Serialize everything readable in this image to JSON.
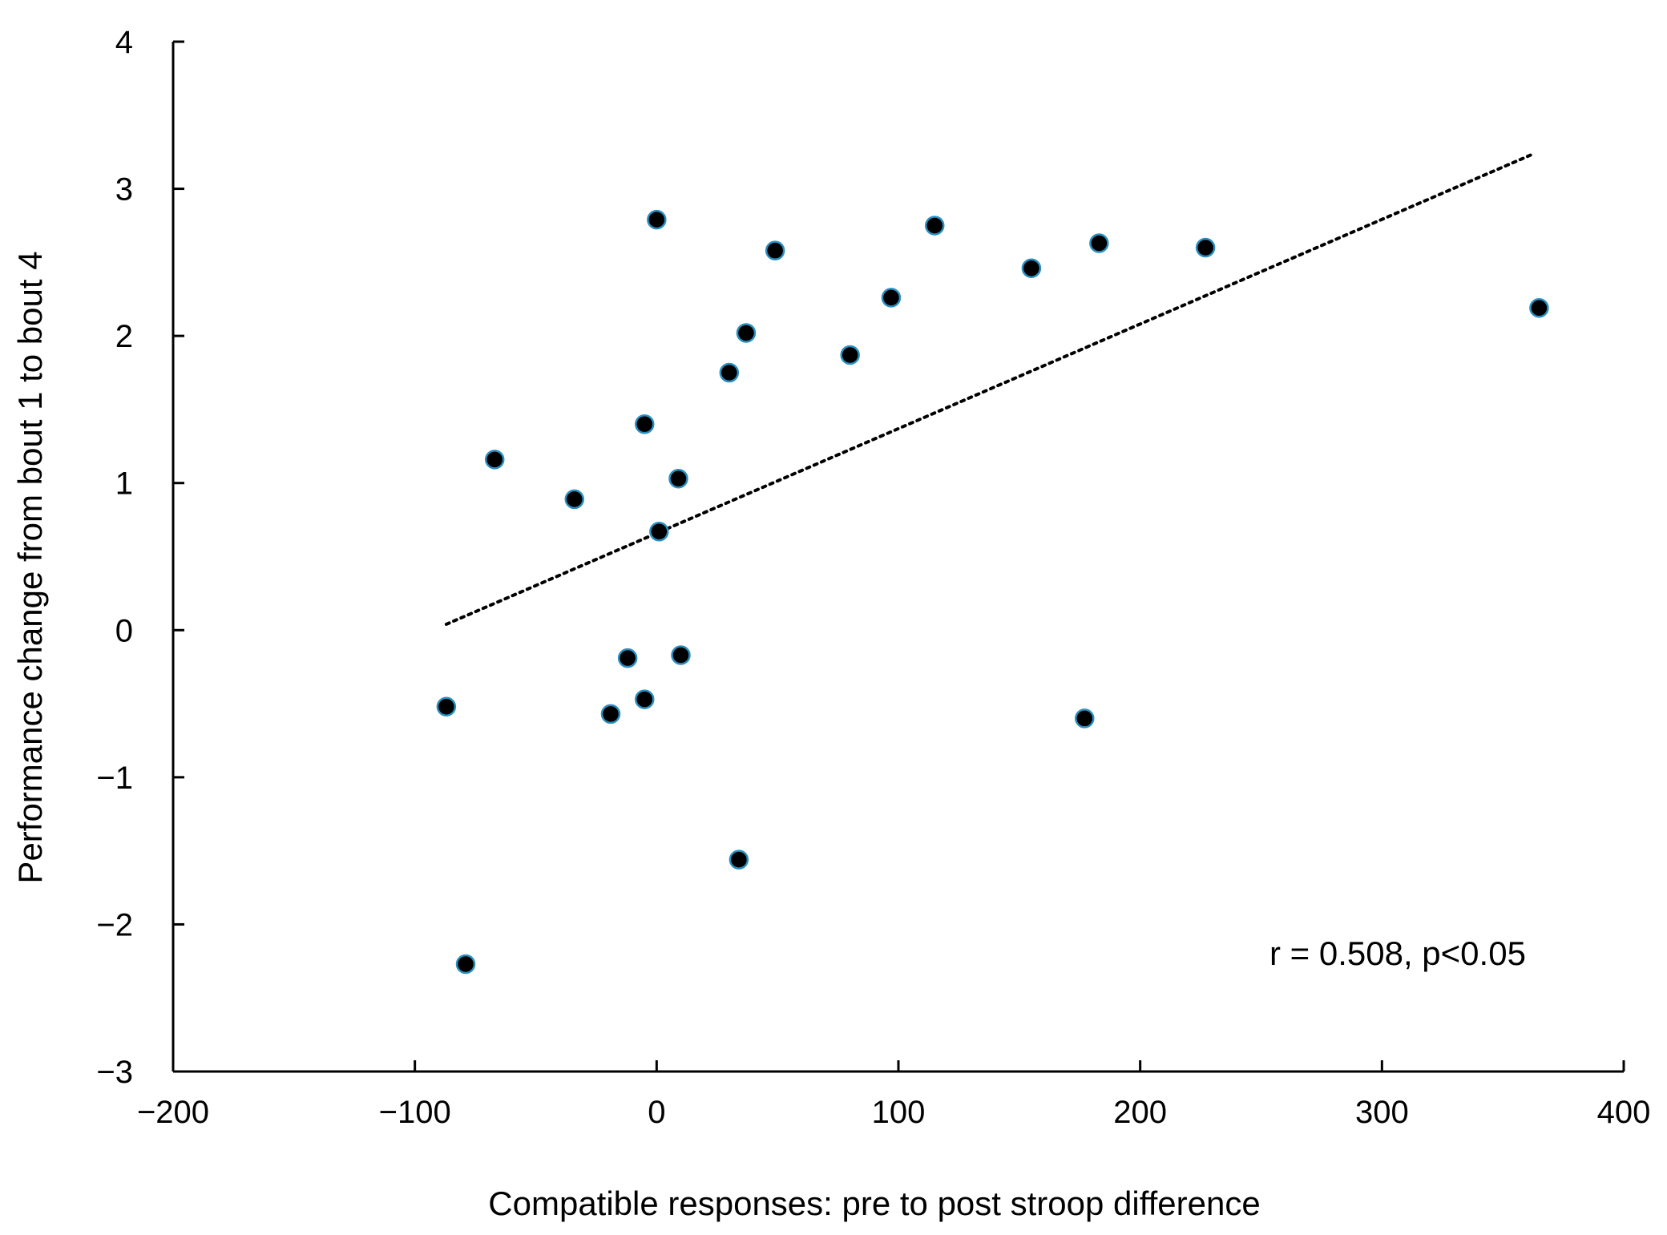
{
  "chart_data": {
    "type": "scatter",
    "xlabel": "Compatible responses: pre to post stroop difference",
    "ylabel": "Performance change from bout 1 to bout 4",
    "xlim": [
      -200,
      400
    ],
    "ylim": [
      -3,
      4
    ],
    "xticks": [
      -200,
      -100,
      0,
      100,
      200,
      300,
      400
    ],
    "yticks": [
      -3,
      -2,
      -1,
      0,
      1,
      2,
      3,
      4
    ],
    "xtick_labels": [
      "−200",
      "−100",
      "0",
      "100",
      "200",
      "300",
      "400"
    ],
    "ytick_labels": [
      "−3",
      "−2",
      "−1",
      "0",
      "1",
      "2",
      "3",
      "4"
    ],
    "grid": false,
    "annotation": "r = 0.508,  p<0.05",
    "marker_color": "#000000",
    "marker_edge_color": "#2a8fc0",
    "trendline": {
      "style": "dotted",
      "x": [
        -87,
        363
      ],
      "y": [
        0.04,
        3.24
      ]
    },
    "series": [
      {
        "points": [
          {
            "x": -87,
            "y": -0.52
          },
          {
            "x": -79,
            "y": -2.27
          },
          {
            "x": -67,
            "y": 1.16
          },
          {
            "x": -34,
            "y": 0.89
          },
          {
            "x": -19,
            "y": -0.57
          },
          {
            "x": -12,
            "y": -0.19
          },
          {
            "x": -5,
            "y": -0.47
          },
          {
            "x": -5,
            "y": 1.4
          },
          {
            "x": 0,
            "y": 2.79
          },
          {
            "x": 1,
            "y": 0.67
          },
          {
            "x": 9,
            "y": 1.03
          },
          {
            "x": 10,
            "y": -0.17
          },
          {
            "x": 30,
            "y": 1.75
          },
          {
            "x": 34,
            "y": -1.56
          },
          {
            "x": 37,
            "y": 2.02
          },
          {
            "x": 49,
            "y": 2.58
          },
          {
            "x": 80,
            "y": 1.87
          },
          {
            "x": 97,
            "y": 2.26
          },
          {
            "x": 115,
            "y": 2.75
          },
          {
            "x": 155,
            "y": 2.46
          },
          {
            "x": 177,
            "y": -0.6
          },
          {
            "x": 183,
            "y": 2.63
          },
          {
            "x": 227,
            "y": 2.6
          },
          {
            "x": 365,
            "y": 2.19
          }
        ]
      }
    ]
  }
}
